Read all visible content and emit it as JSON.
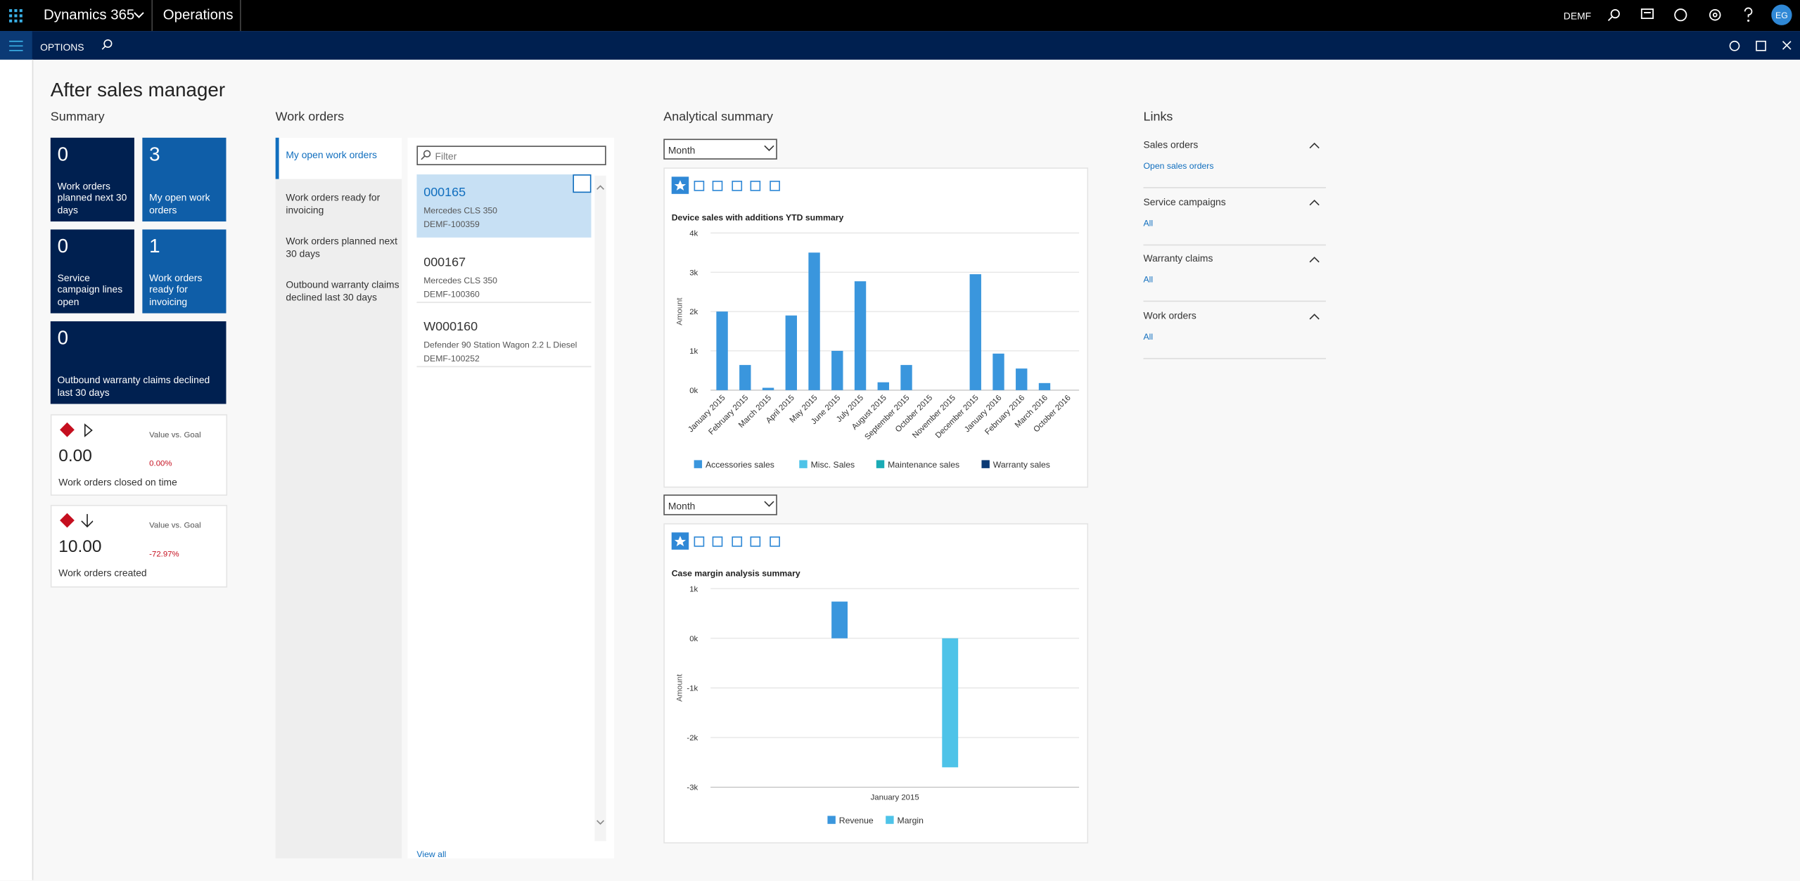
{
  "top_bar": {
    "app": "Dynamics 365",
    "module": "Operations",
    "company": "DEMF",
    "user": "EG"
  },
  "action_bar": {
    "options": "OPTIONS"
  },
  "page_title": "After sales manager",
  "summary": {
    "heading": "Summary",
    "tiles": [
      {
        "value": 0,
        "label": "Work orders planned next 30 days"
      },
      {
        "value": 3,
        "label": "My open work orders"
      },
      {
        "value": 0,
        "label": "Service campaign lines open"
      },
      {
        "value": 1,
        "label": "Work orders ready for invoicing"
      },
      {
        "value": 0,
        "label": "Outbound warranty claims declined last 30 days"
      }
    ],
    "kpis": [
      {
        "value": "0.00",
        "caption": "Work orders closed on time",
        "goal_label": "Value vs. Goal",
        "goal_value": "0.00%"
      },
      {
        "value": "10.00",
        "caption": "Work orders created",
        "goal_label": "Value vs. Goal",
        "goal_value": "-72.97%"
      }
    ]
  },
  "work_orders": {
    "heading": "Work orders",
    "tabs": [
      "My open work orders",
      "Work orders ready for invoicing",
      "Work orders planned next 30 days",
      "Outbound warranty claims declined last 30 days"
    ],
    "filter_placeholder": "Filter",
    "items": [
      {
        "id": "000165",
        "model": "Mercedes CLS 350",
        "ref": "DEMF-100359"
      },
      {
        "id": "000167",
        "model": "Mercedes CLS 350",
        "ref": "DEMF-100360"
      },
      {
        "id": "W000160",
        "model": "Defender 90 Station Wagon 2.2 L Diesel",
        "ref": "DEMF-100252"
      }
    ],
    "view_all": "View all"
  },
  "analytical": {
    "heading": "Analytical summary",
    "charts": [
      {
        "period": "Month",
        "type": "bar",
        "stacked": true,
        "title": "Device sales with additions YTD summary",
        "y_label": "Amount",
        "categories": [
          "January 2015",
          "February 2015",
          "March 2015",
          "April 2015",
          "May 2015",
          "June 2015",
          "July 2015",
          "August 2015",
          "September 2015",
          "October 2015",
          "November 2015",
          "December 2015",
          "January 2016",
          "February 2016",
          "March 2016",
          "October 2016"
        ],
        "series": [
          {
            "name": "Accessories sales",
            "color": "#3a96dd",
            "values": [
              2000,
              640,
              60,
              1900,
              3500,
              1000,
              2770,
              200,
              640,
              0,
              0,
              2950,
              930,
              550,
              180,
              0
            ]
          },
          {
            "name": "Misc. Sales",
            "color": "#4ec3e8",
            "values": [
              0,
              0,
              0,
              0,
              0,
              0,
              0,
              0,
              0,
              0,
              0,
              0,
              0,
              0,
              0,
              0
            ]
          },
          {
            "name": "Maintenance sales",
            "color": "#1aabb5",
            "values": [
              0,
              0,
              0,
              0,
              0,
              0,
              0,
              0,
              0,
              0,
              0,
              0,
              0,
              0,
              0,
              0
            ]
          },
          {
            "name": "Warranty sales",
            "color": "#0b3a75",
            "values": [
              0,
              0,
              0,
              0,
              0,
              0,
              0,
              0,
              0,
              0,
              0,
              0,
              0,
              0,
              0,
              0
            ]
          }
        ],
        "ylim": [
          0,
          4000
        ],
        "yticks": [
          {
            "value": 0,
            "label": "0k"
          },
          {
            "value": 1000,
            "label": "1k"
          },
          {
            "value": 2000,
            "label": "2k"
          },
          {
            "value": 3000,
            "label": "3k"
          },
          {
            "value": 4000,
            "label": "4k"
          }
        ],
        "grid": true
      },
      {
        "period": "Month",
        "type": "bar",
        "stacked": false,
        "title": "Case margin analysis summary",
        "y_label": "Amount",
        "categories": [
          "January 2015"
        ],
        "series": [
          {
            "name": "Revenue",
            "color": "#3a96dd",
            "values": [
              740
            ]
          },
          {
            "name": "Margin",
            "color": "#4ec3e8",
            "values": [
              -2600
            ]
          }
        ],
        "ylim": [
          -3000,
          1000
        ],
        "yticks": [
          {
            "value": -3000,
            "label": "-3k"
          },
          {
            "value": -2000,
            "label": "-2k"
          },
          {
            "value": -1000,
            "label": "-1k"
          },
          {
            "value": 0,
            "label": "0k"
          },
          {
            "value": 1000,
            "label": "1k"
          }
        ],
        "grid": true
      }
    ]
  },
  "links": {
    "heading": "Links",
    "groups": [
      {
        "title": "Sales orders",
        "link": "Open sales orders"
      },
      {
        "title": "Service campaigns",
        "link": "All"
      },
      {
        "title": "Warranty claims",
        "link": "All"
      },
      {
        "title": "Work orders",
        "link": "All"
      }
    ]
  }
}
